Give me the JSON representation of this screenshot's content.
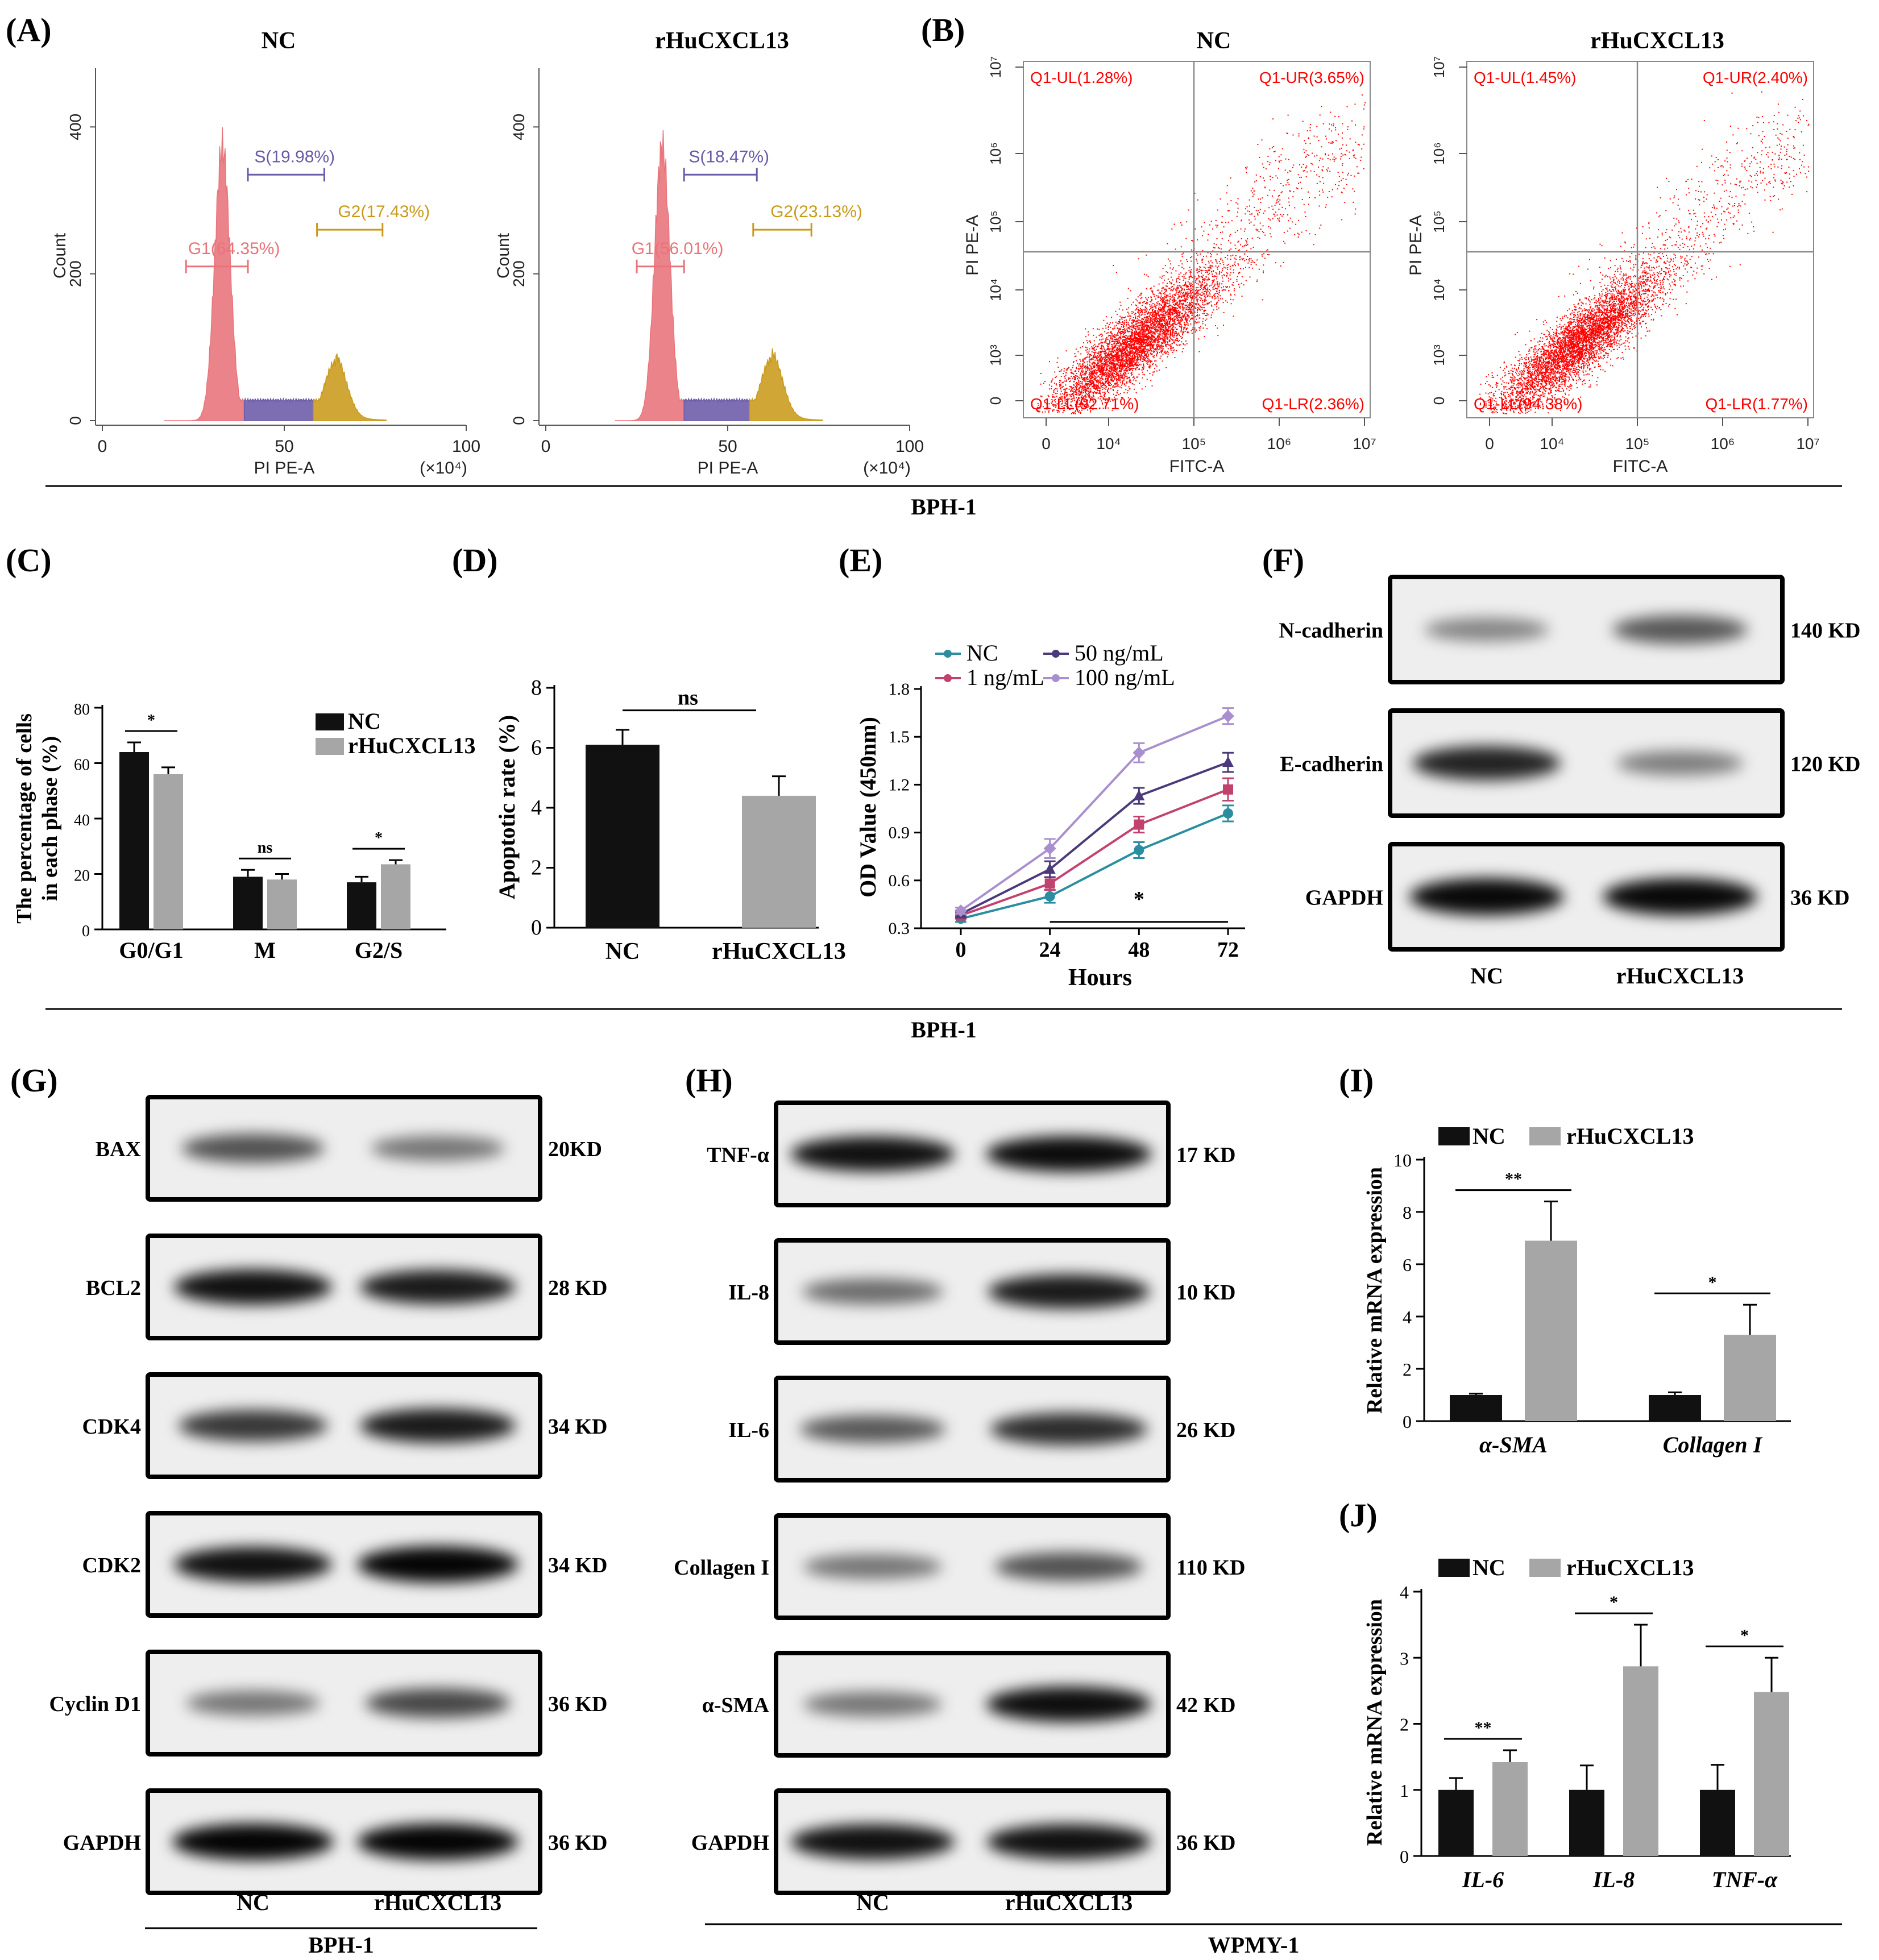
{
  "panels": {
    "A": "(A)",
    "B": "(B)",
    "C": "(C)",
    "D": "(D)",
    "E": "(E)",
    "F": "(F)",
    "G": "(G)",
    "H": "(H)",
    "I": "(I)",
    "J": "(J)"
  },
  "groups": {
    "nc": "NC",
    "treat": "rHuCXCL13"
  },
  "section_labels": {
    "bph1_top": "BPH-1",
    "bph1_mid": "BPH-1",
    "bph1_g": "BPH-1",
    "wpmy1_h": "WPMY-1"
  },
  "colors": {
    "black_bar": "#111111",
    "gray_bar": "#a6a6a6",
    "g1": "#e8737a",
    "s": "#6b5aa8",
    "g2": "#c99a1a",
    "dot": "#ff0000"
  },
  "chart_data": [
    {
      "id": "A-NC",
      "type": "histogram",
      "title": "NC",
      "xlabel": "PI PE-A",
      "x_unit": "(×10⁴)",
      "ylabel": "Count",
      "xticks": [
        "0",
        "50",
        "100"
      ],
      "yticks": [
        "0",
        "200",
        "400"
      ],
      "xlim": [
        0,
        100
      ],
      "ylim": [
        0,
        480
      ],
      "gates": [
        {
          "name": "G1",
          "label": "G1(64.35%)",
          "value": 64.35,
          "range": [
            23,
            40
          ]
        },
        {
          "name": "S",
          "label": "S(19.98%)",
          "value": 19.98,
          "range": [
            40,
            61
          ]
        },
        {
          "name": "G2",
          "label": "G2(17.43%)",
          "value": 17.43,
          "range": [
            59,
            77
          ]
        }
      ],
      "g1_peak": {
        "x": 33,
        "count": 400
      },
      "g2_peak": {
        "x": 64,
        "count": 85
      }
    },
    {
      "id": "A-rHuCXCL13",
      "type": "histogram",
      "title": "rHuCXCL13",
      "xlabel": "PI PE-A",
      "x_unit": "(×10⁴)",
      "ylabel": "Count",
      "xticks": [
        "0",
        "50",
        "100"
      ],
      "yticks": [
        "0",
        "200",
        "400"
      ],
      "xlim": [
        0,
        100
      ],
      "ylim": [
        0,
        480
      ],
      "gates": [
        {
          "name": "G1",
          "label": "G1(56.01%)",
          "value": 56.01,
          "range": [
            25,
            38
          ]
        },
        {
          "name": "S",
          "label": "S(18.47%)",
          "value": 18.47,
          "range": [
            38,
            58
          ]
        },
        {
          "name": "G2",
          "label": "G2(23.13%)",
          "value": 23.13,
          "range": [
            57,
            73
          ]
        }
      ],
      "g1_peak": {
        "x": 32,
        "count": 400
      },
      "g2_peak": {
        "x": 62,
        "count": 90
      }
    },
    {
      "id": "B-NC",
      "type": "scatter",
      "title": "NC",
      "xlabel": "FITC-A",
      "ylabel": "PI PE-A",
      "xticks": [
        "0",
        "10⁴",
        "10⁵",
        "10⁶",
        "10⁷"
      ],
      "yticks": [
        "0",
        "10³",
        "10⁴",
        "10⁵",
        "10⁶",
        "10⁷"
      ],
      "quadrants": {
        "UL": "Q1-UL(1.28%)",
        "UR": "Q1-UR(3.65%)",
        "LL": "Q1-LL(92.71%)",
        "LR": "Q1-LR(2.36%)"
      },
      "quadrant_values": {
        "UL": 1.28,
        "UR": 3.65,
        "LL": 92.71,
        "LR": 2.36
      }
    },
    {
      "id": "B-rHuCXCL13",
      "type": "scatter",
      "title": "rHuCXCL13",
      "xlabel": "FITC-A",
      "ylabel": "PI PE-A",
      "xticks": [
        "0",
        "10⁴",
        "10⁵",
        "10⁶",
        "10⁷"
      ],
      "yticks": [
        "0",
        "10³",
        "10⁴",
        "10⁵",
        "10⁶",
        "10⁷"
      ],
      "quadrants": {
        "UL": "Q1-UL(1.45%)",
        "UR": "Q1-UR(2.40%)",
        "LL": "Q1-LL(94.38%)",
        "LR": "Q1-LR(1.77%)"
      },
      "quadrant_values": {
        "UL": 1.45,
        "UR": 2.4,
        "LL": 94.38,
        "LR": 1.77
      }
    },
    {
      "id": "C",
      "type": "bar",
      "ylabel_line1": "The percentage of cells",
      "ylabel_line2": "in each phase (%)",
      "categories": [
        "G0/G1",
        "M",
        "G2/S"
      ],
      "series": [
        {
          "name": "NC",
          "values": [
            64,
            19,
            17
          ],
          "errors": [
            3.5,
            2.5,
            2
          ]
        },
        {
          "name": "rHuCXCL13",
          "values": [
            56,
            18,
            23.5
          ],
          "errors": [
            2.5,
            2,
            1.5
          ]
        }
      ],
      "ylim": [
        0,
        80
      ],
      "yticks": [
        "0",
        "20",
        "40",
        "60",
        "80"
      ],
      "significance": [
        "*",
        "ns",
        "*"
      ]
    },
    {
      "id": "D",
      "type": "bar",
      "ylabel": "Apoptotic rate (%)",
      "categories": [
        "NC",
        "rHuCXCL13"
      ],
      "values": [
        6.1,
        4.4
      ],
      "errors": [
        0.5,
        0.65
      ],
      "ylim": [
        0,
        8
      ],
      "yticks": [
        "0",
        "2",
        "4",
        "6",
        "8"
      ],
      "significance": "ns"
    },
    {
      "id": "E",
      "type": "line",
      "xlabel": "Hours",
      "ylabel": "OD Value (450nm)",
      "x": [
        0,
        24,
        48,
        72
      ],
      "xticks": [
        "0",
        "24",
        "48",
        "72"
      ],
      "yticks": [
        "0.3",
        "0.6",
        "0.9",
        "1.2",
        "1.5",
        "1.8"
      ],
      "ylim": [
        0.3,
        1.8
      ],
      "series": [
        {
          "name": "NC",
          "legend": "NC",
          "color": "#2a8ea0",
          "marker": "circle",
          "values": [
            0.36,
            0.5,
            0.79,
            1.02
          ],
          "errors": [
            0.02,
            0.04,
            0.05,
            0.05
          ]
        },
        {
          "name": "1 ng/mL",
          "legend": "1 ng/mL",
          "color": "#c2426e",
          "marker": "square",
          "values": [
            0.38,
            0.58,
            0.95,
            1.17
          ],
          "errors": [
            0.02,
            0.04,
            0.05,
            0.07
          ]
        },
        {
          "name": "50 ng/mL",
          "legend": "50 ng/mL",
          "color": "#4b3a7a",
          "marker": "triangle",
          "values": [
            0.39,
            0.67,
            1.13,
            1.34
          ],
          "errors": [
            0.02,
            0.05,
            0.05,
            0.06
          ]
        },
        {
          "name": "100 ng/mL",
          "legend": "100 ng/mL",
          "color": "#a98fd0",
          "marker": "diamond",
          "values": [
            0.41,
            0.8,
            1.4,
            1.63
          ],
          "errors": [
            0.02,
            0.06,
            0.06,
            0.05
          ]
        }
      ],
      "significance": "*"
    },
    {
      "id": "I",
      "type": "bar",
      "ylabel": "Relative mRNA expression",
      "categories": [
        "α-SMA",
        "Collagen I"
      ],
      "series": [
        {
          "name": "NC",
          "values": [
            1.0,
            1.0
          ],
          "errors": [
            0.05,
            0.1
          ]
        },
        {
          "name": "rHuCXCL13",
          "values": [
            6.9,
            3.3
          ],
          "errors": [
            1.5,
            1.15
          ]
        }
      ],
      "ylim": [
        0,
        10
      ],
      "yticks": [
        "0",
        "2",
        "4",
        "6",
        "8",
        "10"
      ],
      "significance": [
        "**",
        "*"
      ]
    },
    {
      "id": "J",
      "type": "bar",
      "ylabel": "Relative mRNA expression",
      "categories": [
        "IL-6",
        "IL-8",
        "TNF-α"
      ],
      "series": [
        {
          "name": "NC",
          "values": [
            1.0,
            1.0,
            1.0
          ],
          "errors": [
            0.18,
            0.37,
            0.38
          ]
        },
        {
          "name": "rHuCXCL13",
          "values": [
            1.42,
            2.87,
            2.48
          ],
          "errors": [
            0.18,
            0.63,
            0.52
          ]
        }
      ],
      "ylim": [
        0,
        4
      ],
      "yticks": [
        "0",
        "1",
        "2",
        "3",
        "4"
      ],
      "significance": [
        "**",
        "*",
        "*"
      ]
    }
  ],
  "blots": {
    "F": {
      "rows": [
        {
          "protein": "N-cadherin",
          "kd": "140 KD",
          "nc": 0.25,
          "treat": 0.5
        },
        {
          "protein": "E-cadherin",
          "kd": "120 KD",
          "nc": 0.8,
          "treat": 0.3
        },
        {
          "protein": "GAPDH",
          "kd": "36 KD",
          "nc": 0.95,
          "treat": 0.95
        }
      ],
      "lanes": [
        "NC",
        "rHuCXCL13"
      ]
    },
    "G": {
      "rows": [
        {
          "protein": "BAX",
          "kd": "20KD",
          "nc": 0.55,
          "treat": 0.35
        },
        {
          "protein": "BCL2",
          "kd": "28 KD",
          "nc": 0.9,
          "treat": 0.85
        },
        {
          "protein": "CDK4",
          "kd": "34 KD",
          "nc": 0.7,
          "treat": 0.85
        },
        {
          "protein": "CDK2",
          "kd": "34 KD",
          "nc": 0.9,
          "treat": 0.97
        },
        {
          "protein": "Cyclin D1",
          "kd": "36 KD",
          "nc": 0.35,
          "treat": 0.6
        },
        {
          "protein": "GAPDH",
          "kd": "36 KD",
          "nc": 0.97,
          "treat": 0.97
        }
      ],
      "lanes": [
        "NC",
        "rHuCXCL13"
      ]
    },
    "H": {
      "rows": [
        {
          "protein": "TNF-α",
          "kd": "17 KD",
          "nc": 0.9,
          "treat": 0.93
        },
        {
          "protein": "IL-8",
          "kd": "10 KD",
          "nc": 0.4,
          "treat": 0.85
        },
        {
          "protein": "IL-6",
          "kd": "26 KD",
          "nc": 0.5,
          "treat": 0.75
        },
        {
          "protein": "Collagen I",
          "kd": "110 KD",
          "nc": 0.35,
          "treat": 0.55
        },
        {
          "protein": "α-SMA",
          "kd": "42 KD",
          "nc": 0.35,
          "treat": 0.92
        },
        {
          "protein": "GAPDH",
          "kd": "36 KD",
          "nc": 0.9,
          "treat": 0.9
        }
      ],
      "lanes": [
        "NC",
        "rHuCXCL13"
      ]
    }
  }
}
